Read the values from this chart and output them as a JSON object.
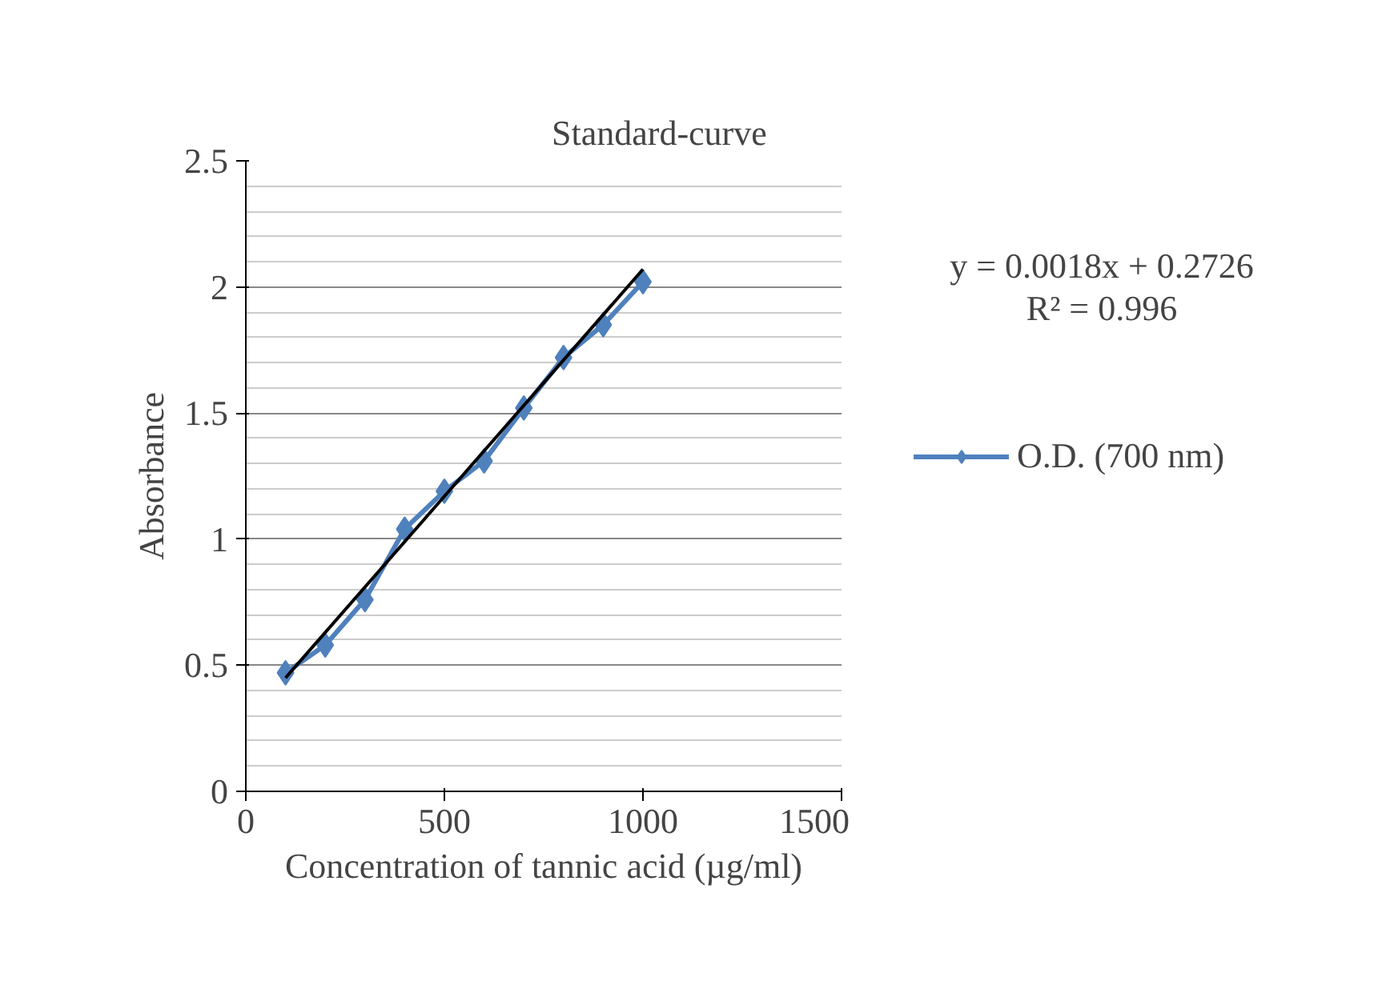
{
  "chart_data": {
    "type": "line",
    "title": "Standard-curve",
    "xlabel": "Concentration of tannic acid (µg/ml)",
    "ylabel": "Absorbance",
    "annotations": [
      "y = 0.0018x + 0.2726",
      "R² = 0.996"
    ],
    "x": [
      100,
      200,
      300,
      400,
      500,
      600,
      700,
      800,
      900,
      1000
    ],
    "series": [
      {
        "name": "O.D. (700 nm)",
        "color": "#4f81bd",
        "marker": "diamond",
        "values": [
          0.47,
          0.58,
          0.76,
          1.04,
          1.19,
          1.31,
          1.52,
          1.72,
          1.85,
          2.02
        ]
      },
      {
        "type": "line",
        "color": "#000000",
        "marker": "none",
        "x": [
          100,
          1000
        ],
        "values": [
          0.45,
          2.07
        ]
      }
    ],
    "xlim": [
      0,
      1500
    ],
    "xticks": [
      0,
      500,
      1000,
      1500
    ],
    "ylim": [
      0,
      2.5
    ],
    "yticks": [
      0,
      0.5,
      1,
      1.5,
      2,
      2.5
    ],
    "grid": "y",
    "legend": "right"
  }
}
